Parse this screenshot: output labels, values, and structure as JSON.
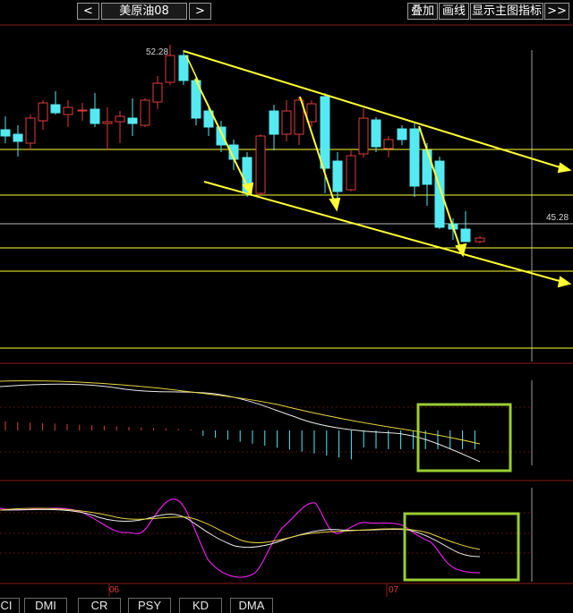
{
  "toolbar": {
    "prev_label": "<",
    "next_label": ">",
    "symbol": "美原油08",
    "overlay_label": "叠加",
    "draw_label": "画线",
    "show_main_indicator_label": "显示主图指标",
    "more_label": ">>"
  },
  "price_labels": {
    "high": "52.28",
    "right": "45.28"
  },
  "date_labels": {
    "first": "06",
    "second": "07"
  },
  "bottom_tabs": [
    "CI",
    "DMI",
    "CR",
    "PSY",
    "KD",
    "DMA"
  ],
  "colors": {
    "background": "#000000",
    "up": "#e03c3c",
    "down": "#55e9f2",
    "trendline": "#ffff33",
    "highlight_box": "#9acd32",
    "indicator_white": "#e8e8e8",
    "indicator_yellow": "#e8d23c",
    "indicator_magenta": "#e020e0"
  }
}
